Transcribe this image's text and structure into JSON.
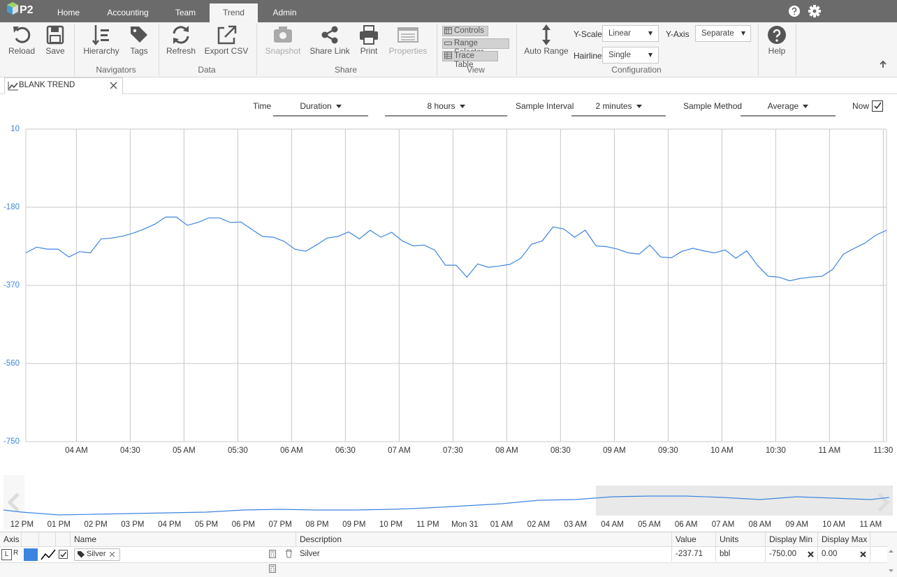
{
  "top_bar": {
    "logo": "P2",
    "tabs": [
      "Home",
      "Accounting",
      "Team",
      "Trend",
      "Admin"
    ]
  },
  "ribbon": {
    "file_buttons": [
      "Reload",
      "Save"
    ],
    "groups": [
      {
        "label": "Navigators",
        "buttons": [
          "Hierarchy",
          "Tags"
        ]
      },
      {
        "label": "Data",
        "buttons": [
          "Refresh",
          "Export CSV"
        ]
      },
      {
        "label": "Share",
        "buttons": [
          "Snapshot",
          "Share Link",
          "Print",
          "Properties"
        ]
      },
      {
        "label": "View",
        "toggles": [
          "Controls",
          "Range Selector",
          "Trace Table"
        ]
      },
      {
        "label": "Configuration",
        "button": "Auto Range",
        "y_scale_label": "Y-Scale",
        "y_scale": "Linear",
        "hairline_label": "Hairline",
        "hairline": "Single",
        "y_axis_label": "Y-Axis",
        "y_axis": "Separate"
      }
    ],
    "help": "Help"
  },
  "document_tab": "BLANK TREND",
  "controls": {
    "time_label": "Time",
    "duration_mode": "Duration",
    "duration": "8 hours",
    "sample_interval_label": "Sample Interval",
    "sample_interval": "2 minutes",
    "sample_method_label": "Sample Method",
    "sample_method": "Average",
    "now_label": "Now"
  },
  "chart_data": [
    {
      "type": "line",
      "color": "#3d85e0",
      "x": [
        3.53,
        3.63,
        3.73,
        3.83,
        3.93,
        4.03,
        4.13,
        4.23,
        4.33,
        4.43,
        4.53,
        4.63,
        4.73,
        4.83,
        4.93,
        5.03,
        5.13,
        5.23,
        5.33,
        5.43,
        5.53,
        5.63,
        5.73,
        5.83,
        5.93,
        6.03,
        6.13,
        6.23,
        6.33,
        6.43,
        6.53,
        6.63,
        6.73,
        6.83,
        6.93,
        7.03,
        7.13,
        7.23,
        7.33,
        7.43,
        7.53,
        7.63,
        7.73,
        7.83,
        7.93,
        8.03,
        8.13,
        8.23,
        8.33,
        8.43,
        8.53,
        8.63,
        8.73,
        8.83,
        8.93,
        9.03,
        9.13,
        9.23,
        9.33,
        9.43,
        9.53,
        9.63,
        9.73,
        9.83,
        9.93,
        10.03,
        10.13,
        10.23,
        10.33,
        10.43,
        10.53,
        10.63,
        10.73,
        10.83,
        10.93,
        11.03,
        11.13,
        11.23,
        11.33,
        11.43,
        11.53
      ],
      "values": [
        -291,
        -277,
        -282,
        -282,
        -301,
        -288,
        -291,
        -257,
        -255,
        -250,
        -243,
        -233,
        -221,
        -204,
        -204,
        -224,
        -217,
        -206,
        -206,
        -217,
        -216,
        -234,
        -251,
        -253,
        -263,
        -282,
        -287,
        -272,
        -255,
        -251,
        -240,
        -257,
        -236,
        -253,
        -241,
        -262,
        -274,
        -272,
        -284,
        -321,
        -321,
        -350,
        -318,
        -326,
        -323,
        -319,
        -304,
        -270,
        -262,
        -228,
        -233,
        -253,
        -236,
        -274,
        -276,
        -282,
        -291,
        -294,
        -272,
        -301,
        -303,
        -287,
        -280,
        -286,
        -291,
        -284,
        -304,
        -286,
        -321,
        -348,
        -350,
        -359,
        -353,
        -350,
        -348,
        -331,
        -294,
        -280,
        -267,
        -248,
        -236
      ],
      "xlim": [
        3.53,
        11.53
      ],
      "ylim": [
        -750,
        10
      ],
      "yticks": [
        10,
        -180,
        -370,
        -560,
        -750
      ],
      "xticks": [
        {
          "value": 4,
          "label": "04 AM"
        },
        {
          "value": 4.5,
          "label": "04:30"
        },
        {
          "value": 5,
          "label": "05 AM"
        },
        {
          "value": 5.5,
          "label": "05:30"
        },
        {
          "value": 6,
          "label": "06 AM"
        },
        {
          "value": 6.5,
          "label": "06:30"
        },
        {
          "value": 7,
          "label": "07 AM"
        },
        {
          "value": 7.5,
          "label": "07:30"
        },
        {
          "value": 8,
          "label": "08 AM"
        },
        {
          "value": 8.5,
          "label": "08:30"
        },
        {
          "value": 9,
          "label": "09 AM"
        },
        {
          "value": 9.5,
          "label": "09:30"
        },
        {
          "value": 10,
          "label": "10 AM"
        },
        {
          "value": 10.5,
          "label": "10:30"
        },
        {
          "value": 11,
          "label": "11 AM"
        },
        {
          "value": 11.5,
          "label": "11:30"
        }
      ],
      "grid": true
    },
    {
      "type": "line",
      "color": "#3d85e0",
      "x": [
        11.5,
        12,
        13,
        14,
        15,
        16,
        17,
        18,
        19,
        20,
        21,
        22,
        23,
        24,
        25,
        26,
        27,
        28,
        29,
        30,
        31,
        32,
        33,
        34,
        35,
        35.5
      ],
      "values": [
        -598,
        -649,
        -716,
        -699,
        -682,
        -666,
        -649,
        -598,
        -581,
        -598,
        -598,
        -581,
        -547,
        -497,
        -446,
        -362,
        -345,
        -277,
        -260,
        -260,
        -294,
        -345,
        -277,
        -311,
        -345,
        -294
      ],
      "xlim": [
        11.5,
        35.6
      ],
      "ylim": [
        -750,
        10
      ],
      "xticks": [
        {
          "value": 12,
          "label": "12 PM"
        },
        {
          "value": 13,
          "label": "01 PM"
        },
        {
          "value": 14,
          "label": "02 PM"
        },
        {
          "value": 15,
          "label": "03 PM"
        },
        {
          "value": 16,
          "label": "04 PM"
        },
        {
          "value": 17,
          "label": "05 PM"
        },
        {
          "value": 18,
          "label": "06 PM"
        },
        {
          "value": 19,
          "label": "07 PM"
        },
        {
          "value": 20,
          "label": "08 PM"
        },
        {
          "value": 21,
          "label": "09 PM"
        },
        {
          "value": 22,
          "label": "10 PM"
        },
        {
          "value": 23,
          "label": "11 PM"
        },
        {
          "value": 24,
          "label": "Mon 31"
        },
        {
          "value": 25,
          "label": "01 AM"
        },
        {
          "value": 26,
          "label": "02 AM"
        },
        {
          "value": 27,
          "label": "03 AM"
        },
        {
          "value": 28,
          "label": "04 AM"
        },
        {
          "value": 29,
          "label": "05 AM"
        },
        {
          "value": 30,
          "label": "06 AM"
        },
        {
          "value": 31,
          "label": "07 AM"
        },
        {
          "value": 32,
          "label": "08 AM"
        },
        {
          "value": 33,
          "label": "09 AM"
        },
        {
          "value": 34,
          "label": "10 AM"
        },
        {
          "value": 35,
          "label": "11 AM"
        }
      ],
      "grid": false
    }
  ],
  "trace_table": {
    "headers": [
      "Axis",
      "Name",
      "Description",
      "Value",
      "Units",
      "Display Min",
      "Display Max"
    ],
    "rows": [
      {
        "axis_left": "L",
        "axis_right": "R",
        "tag": "Silver",
        "description": "Silver",
        "value": "-237.71",
        "units": "bbl",
        "display_min": "-750.00",
        "display_max": "0.00"
      }
    ]
  }
}
